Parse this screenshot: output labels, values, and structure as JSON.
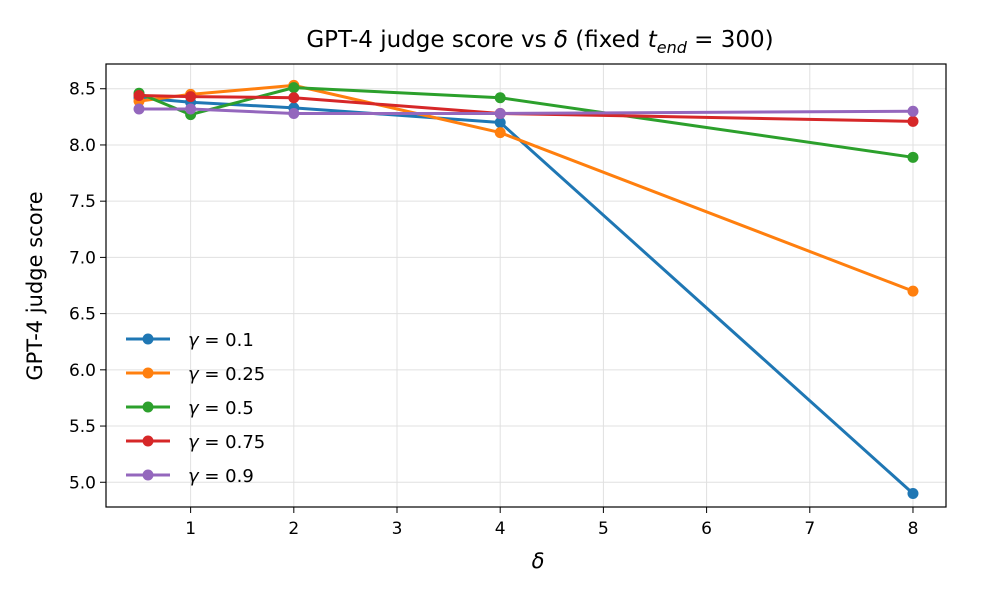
{
  "chart_data": {
    "type": "line",
    "title_main": "GPT-4 judge score vs ",
    "title_delta": "δ",
    "title_fixed": " (fixed ",
    "title_t": "t",
    "title_sub": "end",
    "title_eq": " = 300)",
    "xlabel": "δ",
    "ylabel": "GPT-4 judge score",
    "xlim": [
      0.18,
      8.32
    ],
    "ylim": [
      4.78,
      8.72
    ],
    "xticks": [
      1,
      2,
      3,
      4,
      5,
      6,
      7,
      8
    ],
    "yticks": [
      5.0,
      5.5,
      6.0,
      6.5,
      7.0,
      7.5,
      8.0,
      8.5
    ],
    "ytick_labels": [
      "5.0",
      "5.5",
      "6.0",
      "6.5",
      "7.0",
      "7.5",
      "8.0",
      "8.5"
    ],
    "grid": true,
    "legend_position": "lower-left",
    "x": [
      0.5,
      1,
      2,
      4,
      8
    ],
    "series": [
      {
        "name_prefix": "γ",
        "name_value": " = 0.1",
        "color": "#1f77b4",
        "values": [
          8.42,
          8.38,
          8.33,
          8.2,
          4.9
        ]
      },
      {
        "name_prefix": "γ",
        "name_value": " = 0.25",
        "color": "#ff7f0e",
        "values": [
          8.39,
          8.45,
          8.53,
          8.11,
          6.7
        ]
      },
      {
        "name_prefix": "γ",
        "name_value": " = 0.5",
        "color": "#2ca02c",
        "values": [
          8.46,
          8.27,
          8.51,
          8.42,
          7.89
        ]
      },
      {
        "name_prefix": "γ",
        "name_value": " = 0.75",
        "color": "#d62728",
        "values": [
          8.44,
          8.43,
          8.42,
          8.28,
          8.21
        ]
      },
      {
        "name_prefix": "γ",
        "name_value": " = 0.9",
        "color": "#9467bd",
        "values": [
          8.32,
          8.32,
          8.28,
          8.28,
          8.3
        ]
      }
    ]
  }
}
